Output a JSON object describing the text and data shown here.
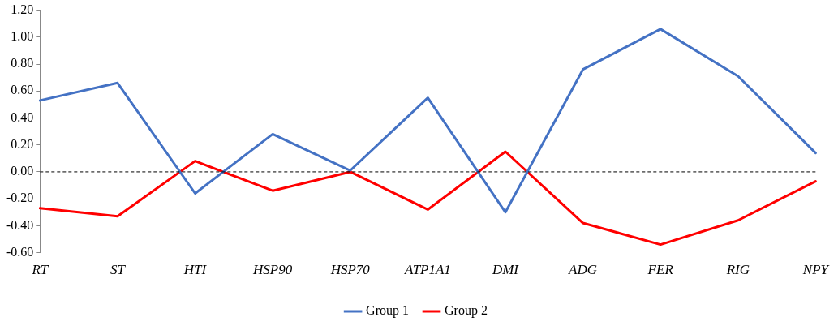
{
  "chart_data": {
    "type": "line",
    "categories": [
      "RT",
      "ST",
      "HTI",
      "HSP90",
      "HSP70",
      "ATP1A1",
      "DMI",
      "ADG",
      "FER",
      "RIG",
      "NPY"
    ],
    "series": [
      {
        "name": "Group 1",
        "color": "#4472c4",
        "values": [
          0.53,
          0.66,
          -0.16,
          0.28,
          0.01,
          0.55,
          -0.3,
          0.76,
          1.06,
          0.71,
          0.14
        ]
      },
      {
        "name": "Group 2",
        "color": "#ff0000",
        "values": [
          -0.27,
          -0.33,
          0.08,
          -0.14,
          0.0,
          -0.28,
          0.15,
          -0.38,
          -0.54,
          -0.36,
          -0.07
        ]
      }
    ],
    "ylim": [
      -0.6,
      1.2
    ],
    "yticks": [
      {
        "value": -0.6,
        "label": "-0.60"
      },
      {
        "value": -0.4,
        "label": "-0.40"
      },
      {
        "value": -0.2,
        "label": "-0.20"
      },
      {
        "value": 0,
        "label": "0.00"
      },
      {
        "value": 0.2,
        "label": "0.20"
      },
      {
        "value": 0.4,
        "label": "0.40"
      },
      {
        "value": 0.6,
        "label": "0.60"
      },
      {
        "value": 0.8,
        "label": "0.80"
      },
      {
        "value": 1.0,
        "label": "1.00"
      },
      {
        "value": 1.2,
        "label": "1.20"
      }
    ],
    "ref_lines": [
      {
        "axis": "y",
        "value": 0,
        "color": "#000000",
        "line_style": "dashed"
      }
    ],
    "grid": false,
    "legend": "bottom",
    "marker": "none",
    "line_style": "solid"
  }
}
